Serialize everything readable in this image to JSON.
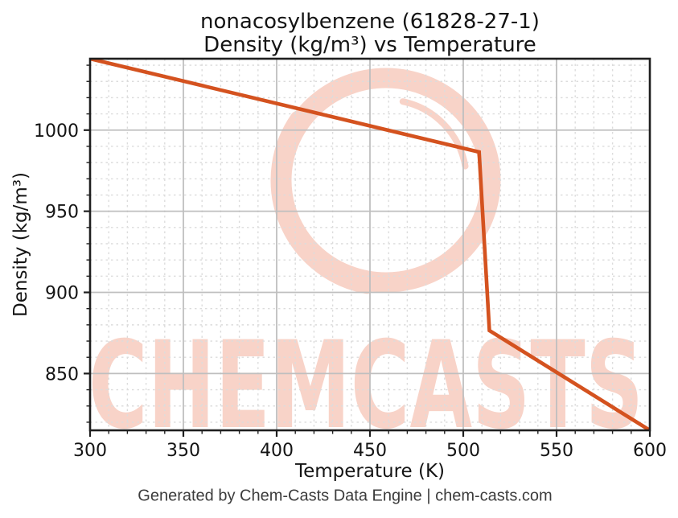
{
  "title": {
    "line1": "nonacosylbenzene (61828-27-1)",
    "line2": "Density (kg/m³) vs Temperature"
  },
  "axes": {
    "xlabel": "Temperature (K)",
    "ylabel": "Density (kg/m³)"
  },
  "footer": {
    "text": "Generated by Chem-Casts Data Engine | chem-casts.com"
  },
  "watermark": {
    "text": "CHEMCASTS",
    "color": "#f8d3c8"
  },
  "colors": {
    "line": "#d4521f",
    "grid_major": "#bfbfbf",
    "grid_minor": "#dcdcdc",
    "spine": "#1f1f1f",
    "tick_text": "#141414",
    "footer_text": "#3c3c3c"
  },
  "chart_data": {
    "type": "line",
    "title": "nonacosylbenzene (61828-27-1) Density (kg/m³) vs Temperature",
    "xlabel": "Temperature (K)",
    "ylabel": "Density (kg/m³)",
    "xlim": [
      300,
      600
    ],
    "ylim": [
      815,
      1044
    ],
    "xticks": [
      300,
      350,
      400,
      450,
      500,
      550,
      600
    ],
    "yticks": [
      850,
      900,
      950,
      1000
    ],
    "minor_step_x": 10,
    "minor_step_y": 10,
    "grid": {
      "major": "solid",
      "minor": "dashed"
    },
    "legend": null,
    "series": [
      {
        "name": "Density (kg/m³)",
        "color": "#d4521f",
        "points": [
          [
            300,
            1044
          ],
          [
            508.5,
            986.5
          ],
          [
            514,
            876.5
          ],
          [
            600,
            815
          ]
        ]
      }
    ]
  }
}
